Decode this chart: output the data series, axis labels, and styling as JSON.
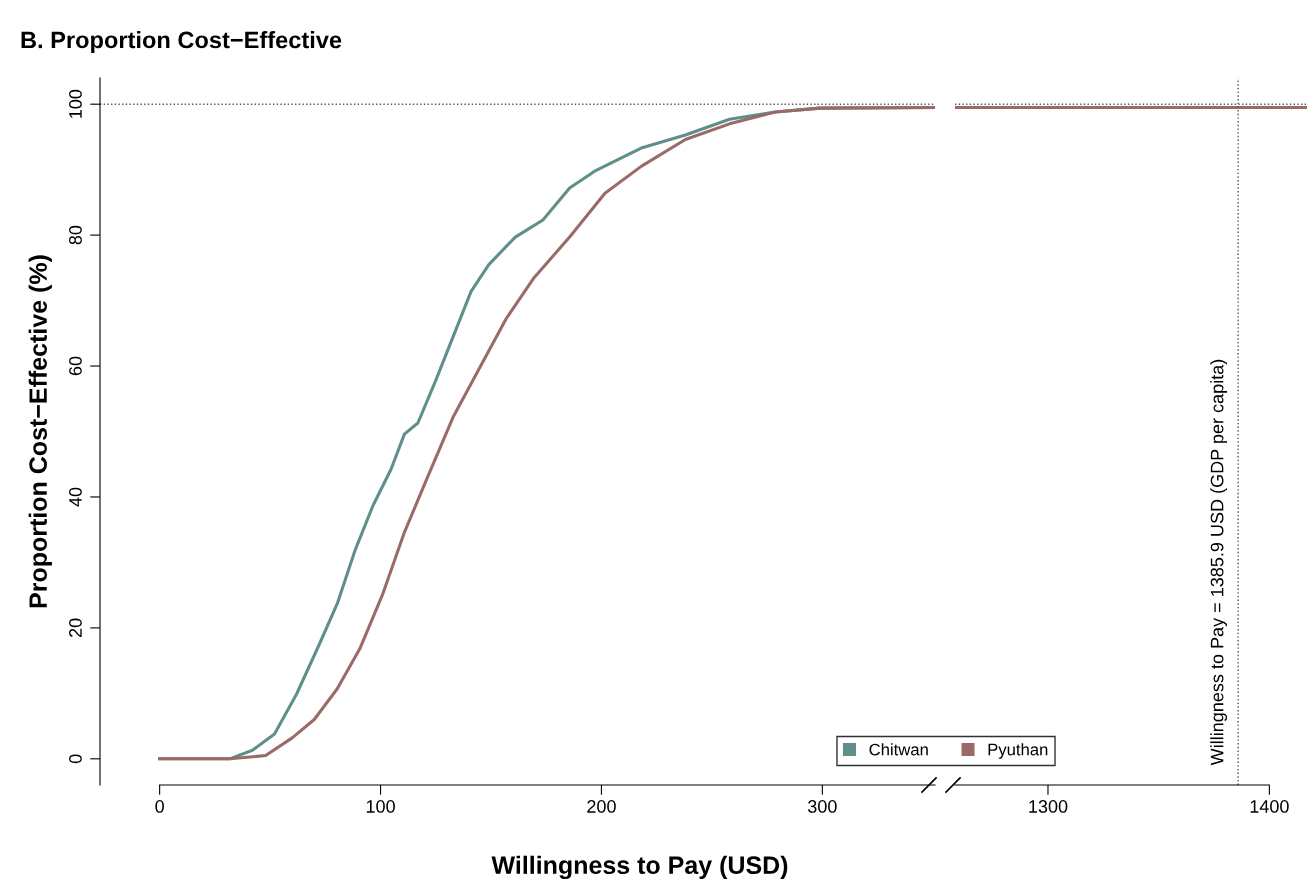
{
  "chart_data": [
    {
      "type": "line",
      "title": "B. Proportion Cost−Effective",
      "xlabel": "Willingness to Pay (USD)",
      "ylabel": "Proportion Cost−Effective (%)",
      "xlim": [
        -27,
        351
      ],
      "ylim": [
        -4,
        104
      ],
      "xticks": [
        0,
        100,
        200,
        300
      ],
      "yticks": [
        0,
        20,
        40,
        60,
        80,
        100
      ],
      "legend": "bottom right",
      "series": [
        {
          "name": "Chitwan",
          "color": "#5f8f8a",
          "x": [
            0,
            31.7,
            42,
            52,
            62,
            72.3,
            80.4,
            88.4,
            96.6,
            104.7,
            110.8,
            116.9,
            125,
            133,
            141,
            149,
            161,
            173.5,
            185.6,
            197.6,
            218,
            238,
            258,
            278.7,
            298.9,
            351
          ],
          "values": [
            0,
            0,
            1.3,
            3.8,
            9.9,
            17.5,
            23.7,
            31.8,
            38.7,
            44.2,
            49.6,
            51.3,
            57.8,
            64.6,
            71.4,
            75.5,
            79.7,
            82.3,
            87.2,
            89.9,
            93.3,
            95.3,
            97.7,
            98.8,
            99.4,
            99.5
          ]
        },
        {
          "name": "Pyuthan",
          "color": "#9a6a68",
          "x": [
            0,
            31.7,
            48,
            60,
            70,
            80.4,
            90.6,
            100.8,
            110.8,
            121,
            133,
            145,
            157,
            169.5,
            185.6,
            201.6,
            218,
            238,
            258,
            278.7,
            298.9,
            351
          ],
          "values": [
            0,
            0,
            0.5,
            3.2,
            6,
            10.7,
            16.8,
            25,
            34.6,
            42.8,
            52.3,
            59.8,
            67.3,
            73.5,
            79.7,
            86.4,
            90.5,
            94.6,
            97,
            98.8,
            99.4,
            99.5
          ]
        }
      ],
      "ref_lines": [
        {
          "axis": "y",
          "value": 100,
          "line_style": "dotted"
        }
      ]
    },
    {
      "type": "line",
      "xlim": [
        1258,
        1417
      ],
      "ylim": [
        -4,
        104
      ],
      "xticks": [
        1300,
        1400
      ],
      "tick_labels": "x",
      "series": [
        {
          "color": "#9a6a68",
          "x": [
            1258,
            1417
          ],
          "values": [
            99.5,
            99.5
          ]
        }
      ],
      "ref_lines": [
        {
          "axis": "y",
          "value": 100,
          "line_style": "dotted"
        },
        {
          "axis": "x",
          "value": 1385.9,
          "label": "Willingness to Pay = 1385.9 USD (GDP per capita)",
          "line_style": "dotted"
        }
      ]
    }
  ]
}
